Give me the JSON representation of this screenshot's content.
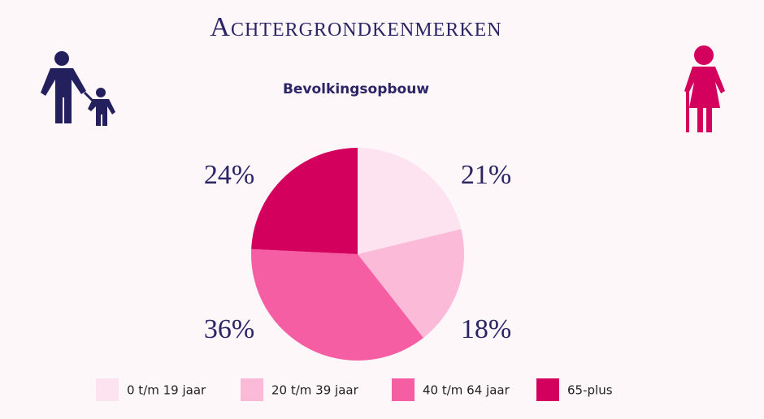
{
  "header": {
    "title": "Achtergrondkenmerken"
  },
  "chart_data": {
    "type": "pie",
    "title": "Bevolkingsopbouw",
    "categories": [
      "0 t/m 19 jaar",
      "20 t/m 39 jaar",
      "40 t/m 64 jaar",
      "65-plus"
    ],
    "values": [
      21,
      18,
      36,
      24
    ],
    "value_labels": [
      "21%",
      "18%",
      "36%",
      "24%"
    ],
    "colors": [
      "#fde3ef",
      "#fbbad8",
      "#f65ea4",
      "#d3005e"
    ]
  }
}
